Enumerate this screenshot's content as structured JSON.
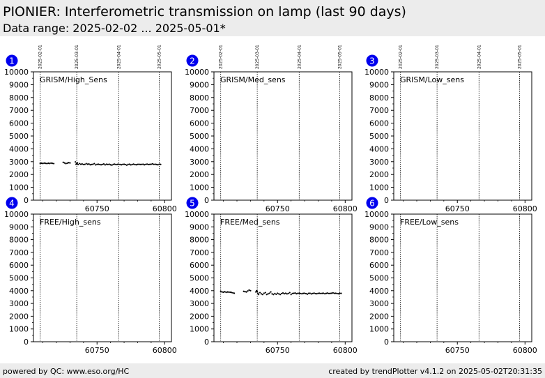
{
  "header": {
    "title": "PIONIER: Interferometric transmission on lamp (last 90 days)",
    "subtitle": "Data range: 2025-02-02 ... 2025-05-01*"
  },
  "footer": {
    "left": "powered by QC: www.eso.org/HC",
    "right": "created by trendPlotter v4.1.2 on 2025-05-02T20:31:35"
  },
  "colors": {
    "badge": "#0000ee",
    "points": "#000000",
    "header_bg": "#ececec"
  },
  "chart_data": {
    "type": "scatter",
    "xlim": [
      60703,
      60805
    ],
    "ylim": [
      0,
      10000
    ],
    "yticks": [
      0,
      1000,
      2000,
      3000,
      4000,
      5000,
      6000,
      7000,
      8000,
      9000,
      10000
    ],
    "xticks": [
      60750,
      60800
    ],
    "date_markers": [
      {
        "mjd": 60708,
        "label": "2025-02-01"
      },
      {
        "mjd": 60735,
        "label": "2025-03-01"
      },
      {
        "mjd": 60766,
        "label": "2025-04-01"
      },
      {
        "mjd": 60796,
        "label": "2025-05-01"
      }
    ],
    "panels": [
      {
        "number": "1",
        "name": "GRISM/High_Sens",
        "x": [
          60708,
          60709,
          60710,
          60711,
          60712,
          60713,
          60714,
          60715,
          60716,
          60717,
          60718,
          60725,
          60726,
          60727,
          60728,
          60729,
          60730,
          60734,
          60734.5,
          60735,
          60735.5,
          60736,
          60737,
          60738,
          60739,
          60740,
          60741,
          60742,
          60743,
          60744,
          60745,
          60746,
          60747,
          60748,
          60749,
          60750,
          60751,
          60752,
          60753,
          60754,
          60755,
          60756,
          60757,
          60758,
          60759,
          60760,
          60761,
          60762,
          60763,
          60764,
          60765,
          60766,
          60767,
          60768,
          60769,
          60770,
          60771,
          60772,
          60773,
          60774,
          60775,
          60776,
          60777,
          60778,
          60779,
          60780,
          60781,
          60782,
          60783,
          60784,
          60785,
          60786,
          60787,
          60788,
          60789,
          60790,
          60791,
          60792,
          60793,
          60794,
          60795,
          60796,
          60797
        ],
        "y": [
          2870,
          2880,
          2860,
          2890,
          2870,
          2850,
          2880,
          2860,
          2890,
          2870,
          2850,
          2950,
          2900,
          2850,
          2880,
          2920,
          2900,
          2980,
          2800,
          2850,
          2900,
          2780,
          2850,
          2800,
          2820,
          2780,
          2790,
          2850,
          2800,
          2820,
          2760,
          2780,
          2800,
          2850,
          2750,
          2790,
          2800,
          2780,
          2760,
          2790,
          2820,
          2750,
          2800,
          2780,
          2800,
          2760,
          2730,
          2790,
          2810,
          2770,
          2790,
          2800,
          2780,
          2760,
          2790,
          2800,
          2770,
          2730,
          2790,
          2800,
          2750,
          2780,
          2810,
          2770,
          2760,
          2790,
          2800,
          2780,
          2790,
          2800,
          2760,
          2790,
          2810,
          2780,
          2790,
          2800,
          2830,
          2790,
          2800,
          2780,
          2760,
          2800,
          2790
        ]
      },
      {
        "number": "2",
        "name": "GRISM/Med_sens",
        "x": [],
        "y": []
      },
      {
        "number": "3",
        "name": "GRISM/Low_sens",
        "x": [],
        "y": []
      },
      {
        "number": "4",
        "name": "FREE/High_sens",
        "x": [],
        "y": []
      },
      {
        "number": "5",
        "name": "FREE/Med_sens",
        "x": [
          60708,
          60709,
          60710,
          60711,
          60712,
          60713,
          60714,
          60715,
          60716,
          60717,
          60718,
          60725,
          60726,
          60727,
          60728,
          60729,
          60730,
          60734,
          60734.5,
          60735,
          60735.5,
          60736,
          60737,
          60738,
          60739,
          60740,
          60741,
          60742,
          60743,
          60744,
          60745,
          60746,
          60747,
          60748,
          60749,
          60750,
          60751,
          60752,
          60753,
          60754,
          60755,
          60756,
          60757,
          60758,
          60759,
          60760,
          60761,
          60762,
          60763,
          60764,
          60765,
          60766,
          60767,
          60768,
          60769,
          60770,
          60771,
          60772,
          60773,
          60774,
          60775,
          60776,
          60777,
          60778,
          60779,
          60780,
          60781,
          60782,
          60783,
          60784,
          60785,
          60786,
          60787,
          60788,
          60789,
          60790,
          60791,
          60792,
          60793,
          60794,
          60795,
          60796,
          60797
        ],
        "y": [
          3950,
          3900,
          3880,
          3920,
          3870,
          3900,
          3890,
          3880,
          3860,
          3830,
          3800,
          3950,
          3920,
          3900,
          3980,
          4050,
          4000,
          3900,
          4000,
          3950,
          3800,
          3700,
          3850,
          3750,
          3700,
          3800,
          3850,
          3700,
          3750,
          3800,
          3900,
          3750,
          3700,
          3780,
          3720,
          3800,
          3750,
          3700,
          3780,
          3820,
          3760,
          3800,
          3750,
          3780,
          3850,
          3700,
          3780,
          3800,
          3820,
          3760,
          3790,
          3800,
          3780,
          3760,
          3790,
          3800,
          3770,
          3730,
          3790,
          3800,
          3750,
          3780,
          3810,
          3770,
          3760,
          3790,
          3800,
          3780,
          3790,
          3800,
          3760,
          3790,
          3810,
          3780,
          3790,
          3800,
          3830,
          3790,
          3800,
          3780,
          3760,
          3800,
          3790
        ]
      },
      {
        "number": "6",
        "name": "FREE/Low_sens",
        "x": [],
        "y": []
      }
    ]
  }
}
